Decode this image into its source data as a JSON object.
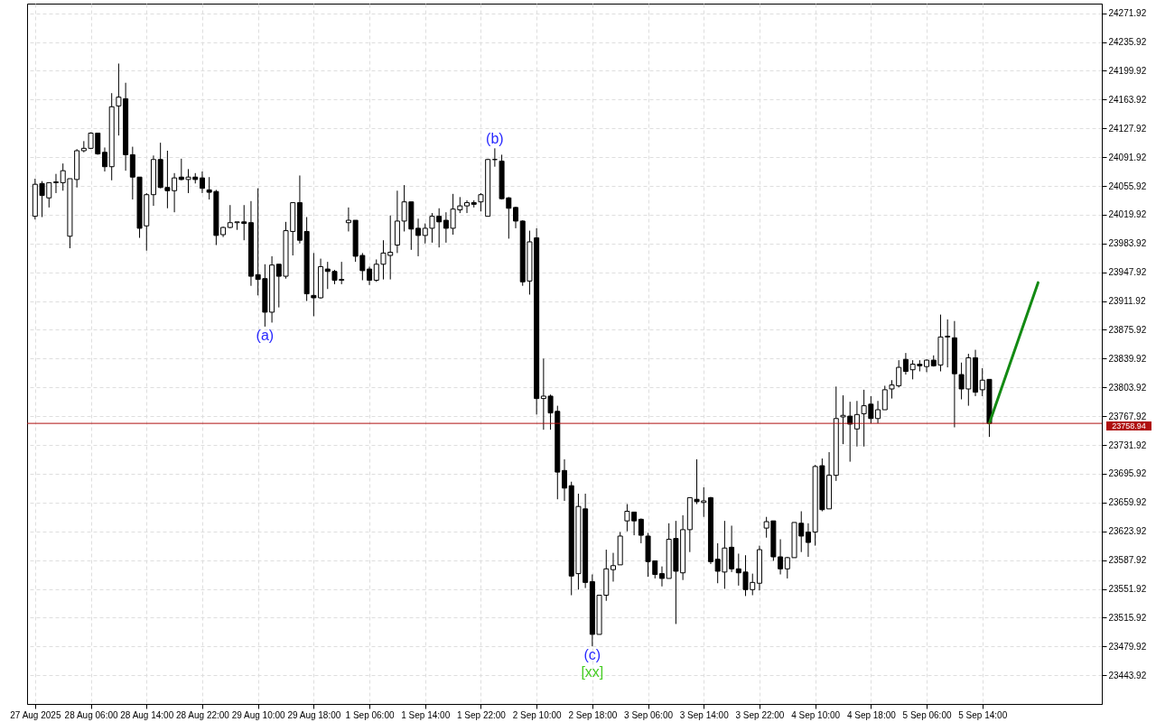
{
  "chart_data": {
    "type": "candlestick",
    "categories": [
      "27 Aug 2025",
      null,
      null,
      null,
      null,
      null,
      null,
      null,
      "28 Aug 06:00",
      null,
      null,
      null,
      null,
      null,
      null,
      null,
      "28 Aug 14:00",
      null,
      null,
      null,
      null,
      null,
      null,
      null,
      "28 Aug 22:00",
      null,
      null,
      null,
      null,
      null,
      null,
      null,
      "29 Aug 10:00",
      null,
      null,
      null,
      null,
      null,
      null,
      null,
      "29 Aug 18:00",
      null,
      null,
      null,
      null,
      null,
      null,
      null,
      "1 Sep 06:00",
      null,
      null,
      null,
      null,
      null,
      null,
      null,
      "1 Sep 14:00",
      null,
      null,
      null,
      null,
      null,
      null,
      null,
      "1 Sep 22:00",
      null,
      null,
      null,
      null,
      null,
      null,
      null,
      "2 Sep 10:00",
      null,
      null,
      null,
      null,
      null,
      null,
      null,
      "2 Sep 18:00",
      null,
      null,
      null,
      null,
      null,
      null,
      null,
      "3 Sep 06:00",
      null,
      null,
      null,
      null,
      null,
      null,
      null,
      "3 Sep 14:00",
      null,
      null,
      null,
      null,
      null,
      null,
      null,
      "3 Sep 22:00",
      null,
      null,
      null,
      null,
      null,
      null,
      null,
      "4 Sep 10:00",
      null,
      null,
      null,
      null,
      null,
      null,
      null,
      "4 Sep 18:00",
      null,
      null,
      null,
      null,
      null,
      null,
      null,
      "5 Sep 06:00",
      null,
      null,
      null,
      null,
      null,
      null,
      null,
      "5 Sep 14:00",
      null,
      null,
      null,
      null,
      null,
      null,
      null,
      null,
      null,
      null,
      null,
      null,
      null,
      null,
      null,
      null
    ],
    "ohlc": [
      [
        24018,
        24065,
        24014,
        24058
      ],
      [
        24059,
        24062,
        24017,
        24044
      ],
      [
        24041,
        24060,
        24029,
        24060
      ],
      [
        24060,
        24071,
        24047,
        24061
      ],
      [
        24060,
        24084,
        24050,
        24075
      ],
      [
        23993,
        24065,
        23978,
        24065
      ],
      [
        24064,
        24102,
        24054,
        24100
      ],
      [
        24100,
        24112,
        24098,
        24103
      ],
      [
        24103,
        24123,
        24102,
        24122
      ],
      [
        24122,
        24122,
        24095,
        24096
      ],
      [
        24098,
        24104,
        24074,
        24080
      ],
      [
        24080,
        24172,
        24063,
        24155
      ],
      [
        24156,
        24209,
        24119,
        24167
      ],
      [
        24165,
        24185,
        24075,
        24095
      ],
      [
        24095,
        24105,
        24039,
        24067
      ],
      [
        24067,
        24067,
        23991,
        24003
      ],
      [
        24006,
        24047,
        23975,
        24045
      ],
      [
        24045,
        24094,
        24031,
        24089
      ],
      [
        24089,
        24110,
        24053,
        24054
      ],
      [
        24054,
        24100,
        24028,
        24050
      ],
      [
        24050,
        24072,
        24023,
        24066
      ],
      [
        24067,
        24090,
        24063,
        24064
      ],
      [
        24064,
        24077,
        24047,
        24067
      ],
      [
        24067,
        24072,
        24059,
        24064
      ],
      [
        24066,
        24074,
        24047,
        24053
      ],
      [
        24051,
        24067,
        24039,
        24048
      ],
      [
        24049,
        24051,
        23982,
        23994
      ],
      [
        23995,
        24005,
        23992,
        24004
      ],
      [
        24004,
        24032,
        24003,
        24010
      ],
      [
        24010,
        24011,
        24001,
        24011
      ],
      [
        24011,
        24032,
        23988,
        24009
      ],
      [
        24010,
        24037,
        23931,
        23943
      ],
      [
        23945,
        24053,
        23919,
        23939
      ],
      [
        23940,
        23958,
        23880,
        23898
      ],
      [
        23898,
        23968,
        23885,
        23957
      ],
      [
        23958,
        23958,
        23904,
        23943
      ],
      [
        23943,
        24011,
        23940,
        24000
      ],
      [
        23999,
        24035,
        23969,
        24035
      ],
      [
        24035,
        24069,
        23984,
        23988
      ],
      [
        23999,
        24017,
        23912,
        23921
      ],
      [
        23919,
        23972,
        23893,
        23916
      ],
      [
        23916,
        23965,
        23915,
        23955
      ],
      [
        23952,
        23961,
        23927,
        23949
      ],
      [
        23949,
        23951,
        23933,
        23938
      ],
      [
        23939,
        23961,
        23933,
        23938
      ],
      [
        24010,
        24029,
        23999,
        24013
      ],
      [
        24013,
        24013,
        23961,
        23968
      ],
      [
        23969,
        23972,
        23938,
        23950
      ],
      [
        23952,
        23955,
        23932,
        23938
      ],
      [
        23938,
        23964,
        23936,
        23958
      ],
      [
        23958,
        23988,
        23939,
        23972
      ],
      [
        23969,
        24019,
        23939,
        23973
      ],
      [
        23982,
        24050,
        23972,
        24012
      ],
      [
        24012,
        24057,
        23999,
        24036
      ],
      [
        24036,
        24036,
        23976,
        24002
      ],
      [
        24003,
        24015,
        23968,
        23994
      ],
      [
        23994,
        24009,
        23984,
        24003
      ],
      [
        24003,
        24022,
        23985,
        24018
      ],
      [
        24018,
        24028,
        23979,
        24011
      ],
      [
        24013,
        24023,
        23985,
        24003
      ],
      [
        24003,
        24046,
        23995,
        24027
      ],
      [
        24026,
        24042,
        24022,
        24031
      ],
      [
        24031,
        24038,
        24022,
        24035
      ],
      [
        24035,
        24038,
        24029,
        24033
      ],
      [
        24036,
        24047,
        24024,
        24045
      ],
      [
        24018,
        24090,
        24018,
        24089
      ],
      [
        24089,
        24103,
        24080,
        24089
      ],
      [
        24087,
        24095,
        24039,
        24040
      ],
      [
        24041,
        24042,
        23990,
        24028
      ],
      [
        24029,
        24030,
        24003,
        24012
      ],
      [
        24012,
        24013,
        23931,
        23936
      ],
      [
        23937,
        24000,
        23920,
        23986
      ],
      [
        23991,
        24003,
        23770,
        23790
      ],
      [
        23790,
        23840,
        23751,
        23793
      ],
      [
        23793,
        23795,
        23751,
        23772
      ],
      [
        23774,
        23781,
        23664,
        23698
      ],
      [
        23700,
        23714,
        23662,
        23678
      ],
      [
        23681,
        23686,
        23544,
        23568
      ],
      [
        23571,
        23671,
        23551,
        23655
      ],
      [
        23652,
        23671,
        23553,
        23560
      ],
      [
        23561,
        23570,
        23480,
        23495
      ],
      [
        23495,
        23544,
        23495,
        23544
      ],
      [
        23544,
        23601,
        23537,
        23577
      ],
      [
        23576,
        23597,
        23561,
        23581
      ],
      [
        23582,
        23623,
        23582,
        23618
      ],
      [
        23637,
        23658,
        23624,
        23649
      ],
      [
        23648,
        23648,
        23619,
        23637
      ],
      [
        23639,
        23640,
        23609,
        23619
      ],
      [
        23618,
        23622,
        23567,
        23586
      ],
      [
        23587,
        23587,
        23565,
        23570
      ],
      [
        23571,
        23580,
        23555,
        23565
      ],
      [
        23565,
        23634,
        23565,
        23614
      ],
      [
        23615,
        23637,
        23508,
        23574
      ],
      [
        23572,
        23644,
        23563,
        23626
      ],
      [
        23626,
        23666,
        23598,
        23666
      ],
      [
        23664,
        23714,
        23658,
        23661
      ],
      [
        23660,
        23679,
        23642,
        23662
      ],
      [
        23666,
        23667,
        23583,
        23586
      ],
      [
        23589,
        23609,
        23559,
        23574
      ],
      [
        23573,
        23637,
        23552,
        23603
      ],
      [
        23604,
        23631,
        23573,
        23577
      ],
      [
        23577,
        23596,
        23556,
        23572
      ],
      [
        23573,
        23594,
        23543,
        23551
      ],
      [
        23551,
        23571,
        23544,
        23560
      ],
      [
        23559,
        23606,
        23550,
        23601
      ],
      [
        23628,
        23642,
        23616,
        23636
      ],
      [
        23637,
        23637,
        23587,
        23592
      ],
      [
        23592,
        23614,
        23570,
        23577
      ],
      [
        23577,
        23592,
        23565,
        23591
      ],
      [
        23591,
        23635,
        23591,
        23635
      ],
      [
        23634,
        23649,
        23598,
        23618
      ],
      [
        23623,
        23634,
        23592,
        23610
      ],
      [
        23623,
        23707,
        23606,
        23705
      ],
      [
        23706,
        23715,
        23649,
        23651
      ],
      [
        23652,
        23723,
        23652,
        23694
      ],
      [
        23694,
        23805,
        23687,
        23765
      ],
      [
        23767,
        23794,
        23733,
        23769
      ],
      [
        23768,
        23786,
        23711,
        23758
      ],
      [
        23752,
        23787,
        23730,
        23770
      ],
      [
        23771,
        23801,
        23730,
        23781
      ],
      [
        23783,
        23793,
        23759,
        23765
      ],
      [
        23765,
        23787,
        23759,
        23776
      ],
      [
        23776,
        23806,
        23776,
        23801
      ],
      [
        23802,
        23813,
        23790,
        23807
      ],
      [
        23806,
        23838,
        23804,
        23829
      ],
      [
        23839,
        23847,
        23820,
        23824
      ],
      [
        23826,
        23838,
        23814,
        23833
      ],
      [
        23833,
        23838,
        23824,
        23831
      ],
      [
        23830,
        23839,
        23823,
        23838
      ],
      [
        23838,
        23844,
        23830,
        23831
      ],
      [
        23832,
        23895,
        23824,
        23867
      ],
      [
        23867,
        23889,
        23829,
        23868
      ],
      [
        23866,
        23887,
        23754,
        23821
      ],
      [
        23820,
        23835,
        23789,
        23802
      ],
      [
        23802,
        23846,
        23781,
        23841
      ],
      [
        23841,
        23851,
        23793,
        23798
      ],
      [
        23801,
        23828,
        23793,
        23813
      ],
      [
        23814,
        23814,
        23742,
        23758.94
      ],
      null,
      null,
      null,
      null,
      null,
      null,
      null,
      null,
      null,
      null,
      null,
      null,
      null,
      null,
      null
    ],
    "series": [
      {
        "type": "line",
        "color": "#138a13",
        "values": [
          null,
          null,
          null,
          null,
          null,
          null,
          null,
          null,
          null,
          null,
          null,
          null,
          null,
          null,
          null,
          null,
          null,
          null,
          null,
          null,
          null,
          null,
          null,
          null,
          null,
          null,
          null,
          null,
          null,
          null,
          null,
          null,
          null,
          null,
          null,
          null,
          null,
          null,
          null,
          null,
          null,
          null,
          null,
          null,
          null,
          null,
          null,
          null,
          null,
          null,
          null,
          null,
          null,
          null,
          null,
          null,
          null,
          null,
          null,
          null,
          null,
          null,
          null,
          null,
          null,
          null,
          null,
          null,
          null,
          null,
          null,
          null,
          null,
          null,
          null,
          null,
          null,
          null,
          null,
          null,
          null,
          null,
          null,
          null,
          null,
          null,
          null,
          null,
          null,
          null,
          null,
          null,
          null,
          null,
          null,
          null,
          null,
          null,
          null,
          null,
          null,
          null,
          null,
          null,
          null,
          null,
          null,
          null,
          null,
          null,
          null,
          null,
          null,
          null,
          null,
          null,
          null,
          null,
          null,
          null,
          null,
          null,
          null,
          null,
          null,
          null,
          null,
          null,
          null,
          null,
          null,
          null,
          null,
          null,
          null,
          null,
          null,
          23759,
          null,
          null,
          null,
          null,
          null,
          null,
          23935,
          null,
          null,
          null,
          null,
          null,
          null,
          null,
          null
        ]
      }
    ],
    "ylim": [
      23408,
      24284
    ],
    "yticks": [
      23443.92,
      23479.92,
      23515.92,
      23551.92,
      23587.92,
      23623.92,
      23659.92,
      23695.92,
      23731.92,
      23767.92,
      23803.92,
      23839.92,
      23875.92,
      23911.92,
      23947.92,
      23983.92,
      24019.92,
      24055.92,
      24091.92,
      24127.92,
      24163.92,
      24199.92,
      24235.92,
      24271.92
    ],
    "grid": true,
    "ref_lines": [
      {
        "axis": "y",
        "value": 23758.94,
        "label": "23758.94",
        "color": "#b01010"
      }
    ],
    "annotations": [
      {
        "text": "(a)",
        "y": 23880
      },
      {
        "text": "(b)",
        "y": 24103
      },
      {
        "text": "(c)",
        "y": 23480
      },
      {
        "text": "[xx]",
        "y": 23480
      }
    ]
  }
}
